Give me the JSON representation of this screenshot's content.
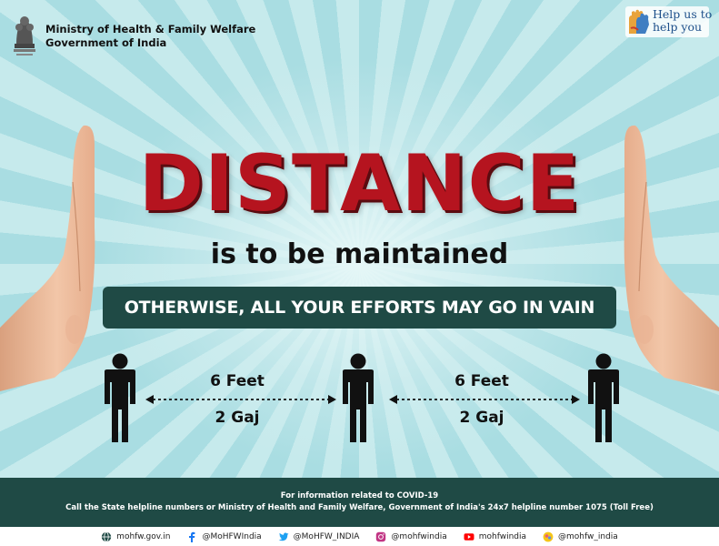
{
  "header": {
    "ministry_line1": "Ministry of Health & Family Welfare",
    "ministry_line2": "Government of India",
    "help_line1": "Help us to",
    "help_line2": "help you"
  },
  "headline": "DISTANCE",
  "subheadline": "is to be maintained",
  "banner": "OTHERWISE, ALL YOUR EFFORTS MAY GO IN VAIN",
  "distances": [
    {
      "top": "6 Feet",
      "bottom": "2 Gaj"
    },
    {
      "top": "6 Feet",
      "bottom": "2 Gaj"
    }
  ],
  "footer": {
    "info_line1": "For information related to COVID-19",
    "info_line2": "Call the State helpline numbers or Ministry of Health and Family Welfare, Government of India's 24x7 helpline number 1075 (Toll Free)",
    "social": [
      {
        "icon": "globe-icon",
        "label": "mohfw.gov.in"
      },
      {
        "icon": "facebook-icon",
        "label": "@MoHFWIndia"
      },
      {
        "icon": "twitter-icon",
        "label": "@MoHFW_INDIA"
      },
      {
        "icon": "instagram-icon",
        "label": "@mohfwindia"
      },
      {
        "icon": "youtube-icon",
        "label": "mohfwindia"
      },
      {
        "icon": "koo-icon",
        "label": "@mohfw_india"
      }
    ]
  },
  "colors": {
    "headline": "#b5141f",
    "banner_bg": "#1f4a45",
    "background": "#a9dde2"
  }
}
